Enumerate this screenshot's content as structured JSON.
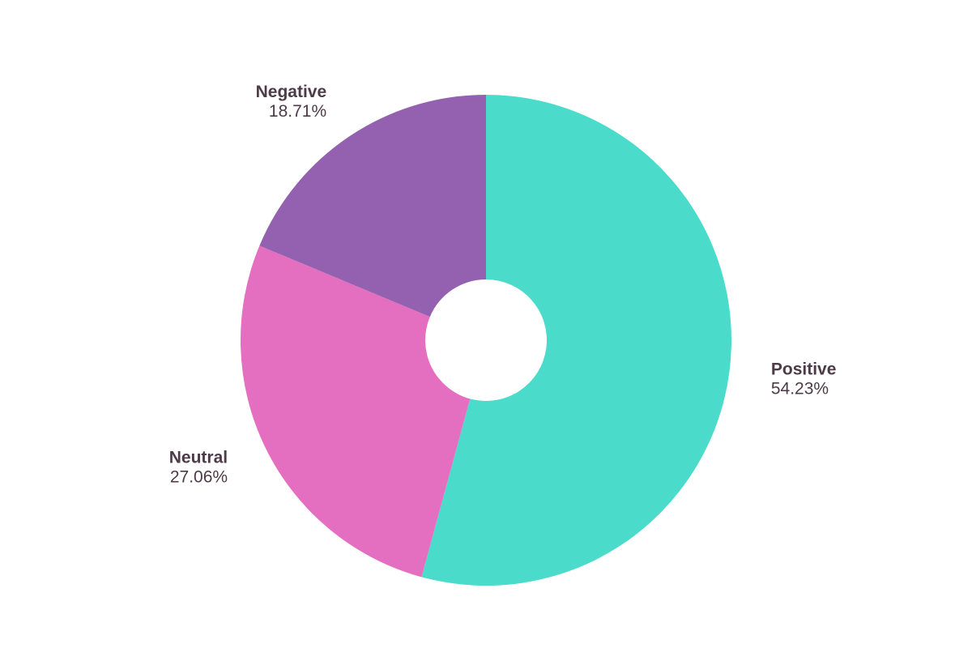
{
  "chart_data": {
    "type": "pie",
    "categories": [
      "Positive",
      "Neutral",
      "Negative"
    ],
    "values": [
      54.23,
      27.06,
      18.71
    ],
    "value_labels": [
      "54.23%",
      "27.06%",
      "18.71%"
    ],
    "colors": [
      "#4adbcb",
      "#e46fc0",
      "#9361b0"
    ]
  }
}
